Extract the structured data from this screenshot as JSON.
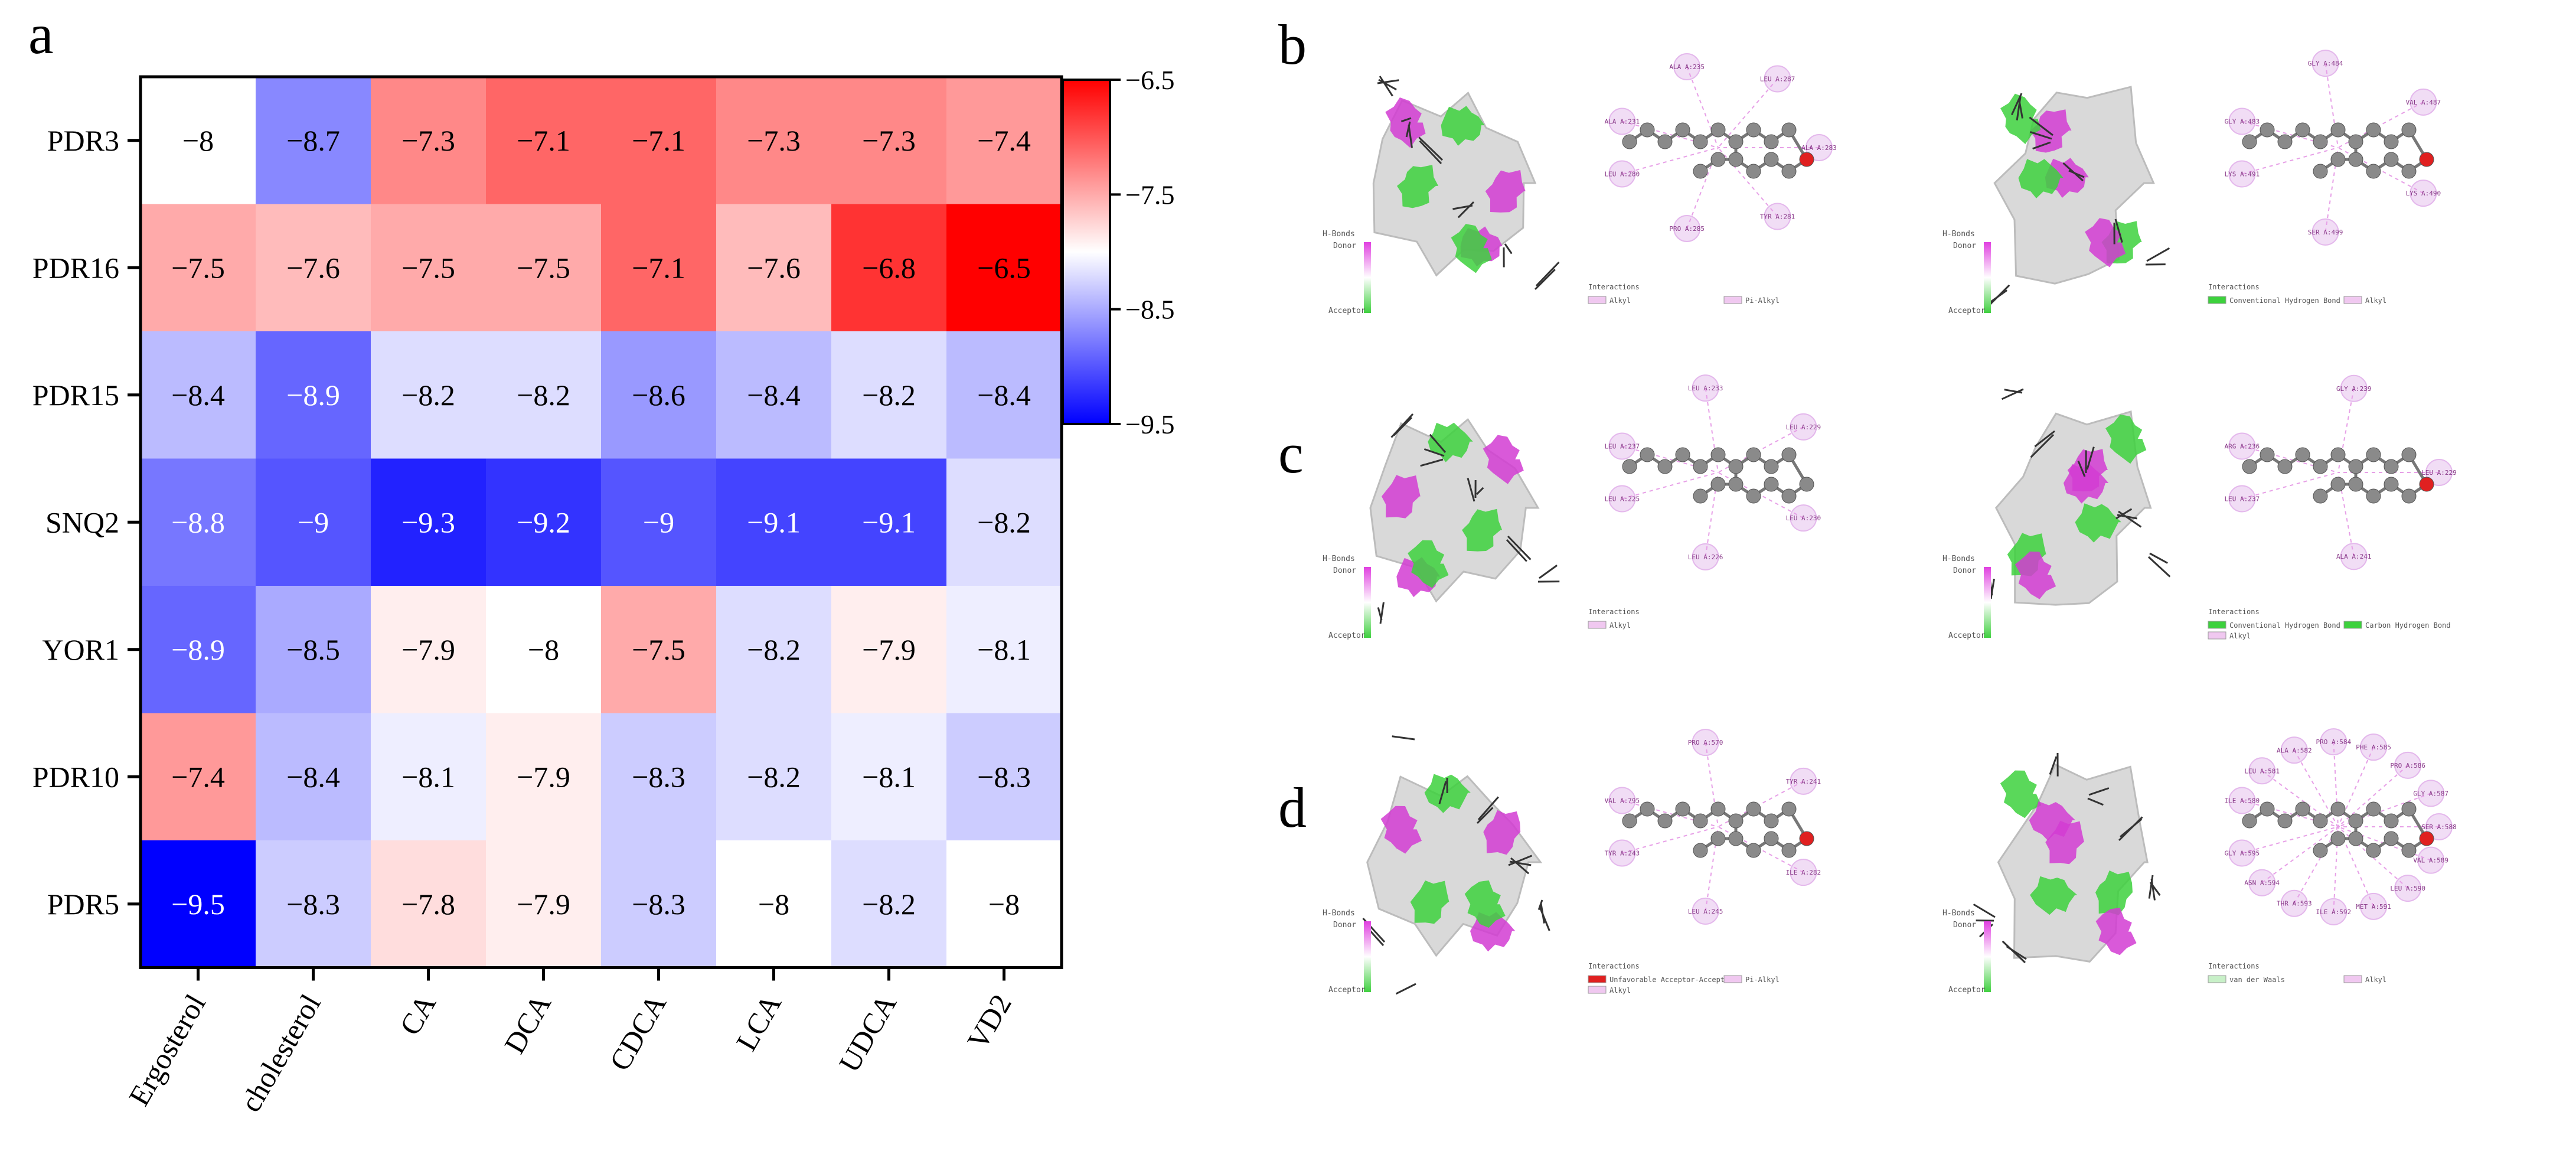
{
  "panel_labels": [
    "a",
    "b",
    "c",
    "d"
  ],
  "chart_data": {
    "type": "heatmap",
    "title": "",
    "rows": [
      "PDR3",
      "PDR16",
      "PDR15",
      "SNQ2",
      "YOR1",
      "PDR10",
      "PDR5"
    ],
    "columns": [
      "Ergosterol",
      "cholesterol",
      "CA",
      "DCA",
      "CDCA",
      "LCA",
      "UDCA",
      "VD2"
    ],
    "values": [
      [
        -8,
        -8.7,
        -7.3,
        -7.1,
        -7.1,
        -7.3,
        -7.3,
        -7.4
      ],
      [
        -7.5,
        -7.6,
        -7.5,
        -7.5,
        -7.1,
        -7.6,
        -6.8,
        -6.5
      ],
      [
        -8.4,
        -8.9,
        -8.2,
        -8.2,
        -8.6,
        -8.4,
        -8.2,
        -8.4
      ],
      [
        -8.8,
        -9,
        -9.3,
        -9.2,
        -9,
        -9.1,
        -9.1,
        -8.2
      ],
      [
        -8.9,
        -8.5,
        -7.9,
        -8,
        -7.5,
        -8.2,
        -7.9,
        -8.1
      ],
      [
        -7.4,
        -8.4,
        -8.1,
        -7.9,
        -8.3,
        -8.2,
        -8.1,
        -8.3
      ],
      [
        -9.5,
        -8.3,
        -7.8,
        -7.9,
        -8.3,
        -8,
        -8.2,
        -8
      ]
    ],
    "colorbar": {
      "range": [
        -9.5,
        -6.5
      ],
      "ticks": [
        -6.5,
        -7.5,
        -8.5,
        -9.5
      ],
      "colors": {
        "low": "#0000ff",
        "mid": "#ffffff",
        "high": "#ff0000"
      }
    }
  },
  "docking": {
    "interaction_title": "Interactions",
    "hbond_title": "H-Bonds",
    "donor": "Donor",
    "acceptor": "Acceptor",
    "colors": {
      "magenta": "#d23cd2",
      "green": "#3dd13d",
      "ball": "#8a8a8a",
      "oxygen": "#e02020"
    },
    "panels": [
      {
        "id": "b",
        "left": {
          "residues": [
            "ALA A:231",
            "ALA A:235",
            "LEU A:287",
            "ALA A:283",
            "TYR A:281",
            "PRO A:285",
            "LEU A:280"
          ],
          "legend": [
            "Alkyl",
            "Pi-Alkyl"
          ]
        },
        "right": {
          "residues": [
            "GLY A:483",
            "GLY A:484",
            "VAL A:487",
            "LYS A:490",
            "SER A:499",
            "LYS A:491"
          ],
          "legend": [
            "Conventional Hydrogen Bond",
            "Alkyl"
          ]
        }
      },
      {
        "id": "c",
        "left": {
          "residues": [
            "LEU A:237",
            "LEU A:233",
            "LEU A:229",
            "LEU A:230",
            "LEU A:226",
            "LEU A:225"
          ],
          "legend": [
            "Alkyl"
          ]
        },
        "right": {
          "residues": [
            "ARG A:236",
            "GLY A:239",
            "LEU A:229",
            "ALA A:241",
            "LEU A:237"
          ],
          "legend": [
            "Conventional Hydrogen Bond",
            "Carbon Hydrogen Bond",
            "Alkyl"
          ]
        }
      },
      {
        "id": "d",
        "left": {
          "residues": [
            "VAL A:795",
            "PRO A:570",
            "TYR A:241",
            "ILE A:282",
            "LEU A:245",
            "TYR A:243"
          ],
          "legend": [
            "Unfavorable Acceptor-Acceptor",
            "Pi-Alkyl",
            "Alkyl"
          ]
        },
        "right": {
          "residues": [
            "ILE A:580",
            "LEU A:581",
            "ALA A:582",
            "PRO A:584",
            "PHE A:585",
            "PRO A:586",
            "GLY A:587",
            "SER A:588",
            "VAL A:589",
            "LEU A:590",
            "MET A:591",
            "ILE A:592",
            "THR A:593",
            "ASN A:594",
            "GLY A:595"
          ],
          "legend": [
            "van der Waals",
            "Alkyl"
          ]
        }
      }
    ]
  }
}
